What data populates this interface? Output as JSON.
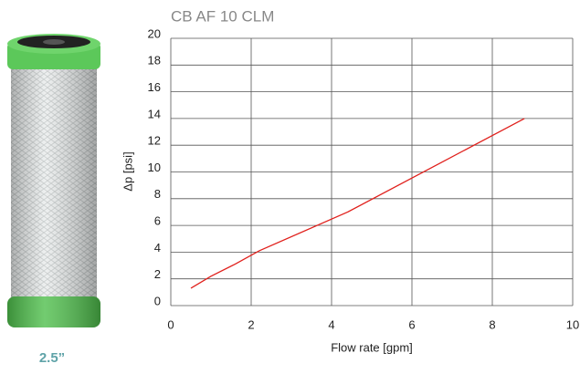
{
  "chart_data": {
    "type": "line",
    "title": "CB AF 10 CLM",
    "xlabel": "Flow rate [gpm]",
    "ylabel": "Δp [psi]",
    "x": [
      0.5,
      1,
      1.6,
      2.2,
      4.4,
      6.6,
      8.8
    ],
    "series": [
      {
        "name": "CB AF 10 CLM",
        "color": "#e0201c",
        "values": [
          1.3,
          2.2,
          3.1,
          4.1,
          7,
          10.5,
          14
        ]
      }
    ],
    "xlim": [
      0,
      10
    ],
    "xticks": [
      0,
      2,
      4,
      6,
      8,
      10
    ],
    "ylim": [
      0,
      20
    ],
    "yticks": [
      0,
      2,
      4,
      6,
      8,
      10,
      12,
      14,
      16,
      18,
      20
    ],
    "grid": true
  },
  "product_label": "2.5”"
}
